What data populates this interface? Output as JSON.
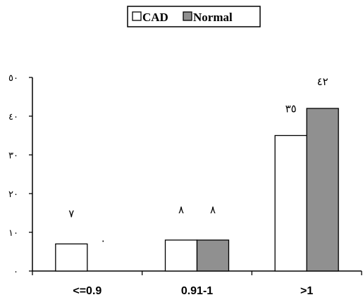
{
  "chart_data": {
    "type": "bar",
    "categories": [
      "<=0.9",
      "0.91-1",
      ">1"
    ],
    "series": [
      {
        "name": "CAD",
        "values": [
          7,
          8,
          35
        ],
        "value_labels": [
          "٧",
          "٨",
          "٣٥"
        ],
        "color": "#ffffff"
      },
      {
        "name": "Normal",
        "values": [
          0,
          8,
          42
        ],
        "value_labels": [
          "٠",
          "٨",
          "٤٢"
        ],
        "color": "#909090"
      }
    ],
    "ylim": [
      0,
      50
    ],
    "yticks": [
      0,
      10,
      20,
      30,
      40,
      50
    ],
    "ytick_labels": [
      "٠",
      "١٠",
      "٢٠",
      "٣٠",
      "٤٠",
      "٥٠"
    ],
    "grid": false,
    "legend_position": "top-center",
    "title": "",
    "xlabel": "",
    "ylabel": ""
  }
}
